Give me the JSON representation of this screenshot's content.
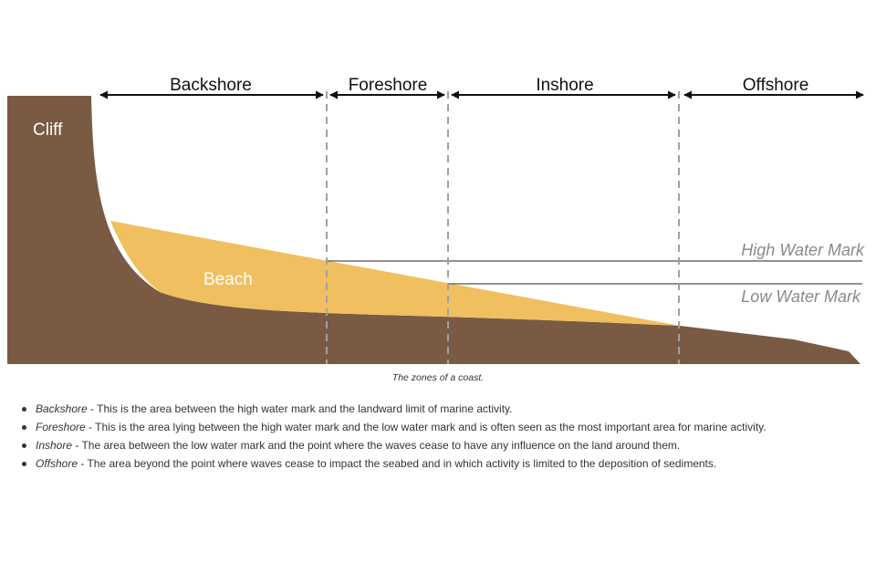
{
  "zones": [
    {
      "label": "Backshore"
    },
    {
      "label": "Foreshore"
    },
    {
      "label": "Inshore"
    },
    {
      "label": "Offshore"
    }
  ],
  "features": {
    "cliff": "Cliff",
    "beach": "Beach"
  },
  "water_marks": {
    "high": "High Water Mark",
    "low": "Low Water Mark"
  },
  "caption": "The zones of a coast.",
  "definitions": [
    {
      "term": "Backshore",
      "text": " - This is the area between the high water mark and the landward limit of marine activity."
    },
    {
      "term": "Foreshore",
      "text": " - This is the area lying between the high water mark and the low water mark and is often seen as the most important area for marine activity."
    },
    {
      "term": "Inshore",
      "text": " - The area between the low water mark and the point where the waves cease to have any influence on the land around them."
    },
    {
      "term": "Offshore",
      "text": " - The area beyond the point where waves cease to impact the seabed and in which activity is limited to the deposition of sediments."
    }
  ],
  "colors": {
    "land": "#7a5a43",
    "beach": "#f0c060",
    "water_line": "#6e6e6e",
    "divider": "#a0a0a0",
    "arrow": "#111111"
  }
}
